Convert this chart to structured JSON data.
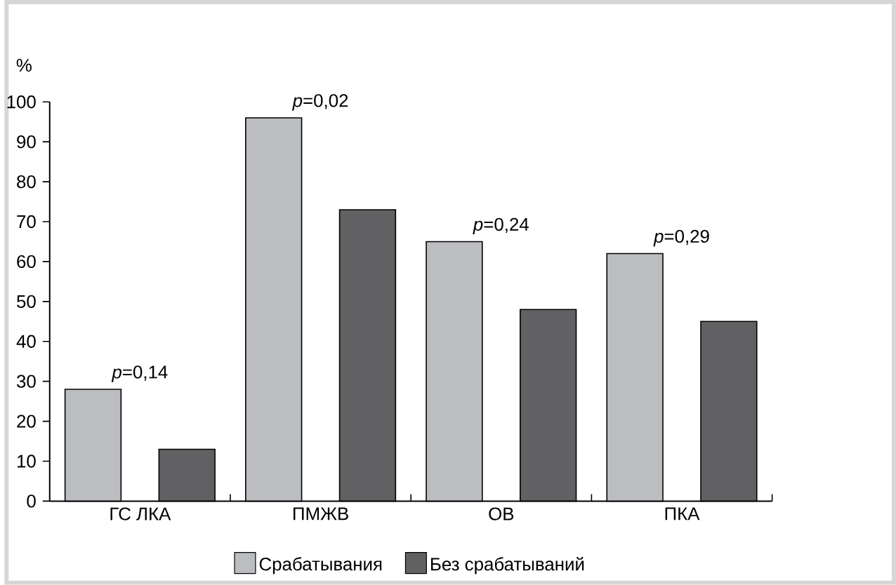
{
  "chart_data": {
    "type": "bar",
    "ylabel": "%",
    "categories": [
      "ГС ЛКА",
      "ПМЖВ",
      "ОВ",
      "ПКА"
    ],
    "series": [
      {
        "name": "Срабатывания",
        "color": "#bcbdc1",
        "values": [
          28,
          96,
          65,
          62
        ]
      },
      {
        "name": "Без срабатываний",
        "color": "#616163",
        "values": [
          13,
          73,
          48,
          45
        ]
      }
    ],
    "ylim": [
      0,
      100
    ],
    "yticks": [
      0,
      10,
      20,
      30,
      40,
      50,
      60,
      70,
      80,
      90,
      100
    ],
    "legend": "bottom",
    "annotations": [
      "*p*=0,14",
      "*p*=0,02",
      "*p*=0,24",
      "*p*=0,29"
    ]
  }
}
